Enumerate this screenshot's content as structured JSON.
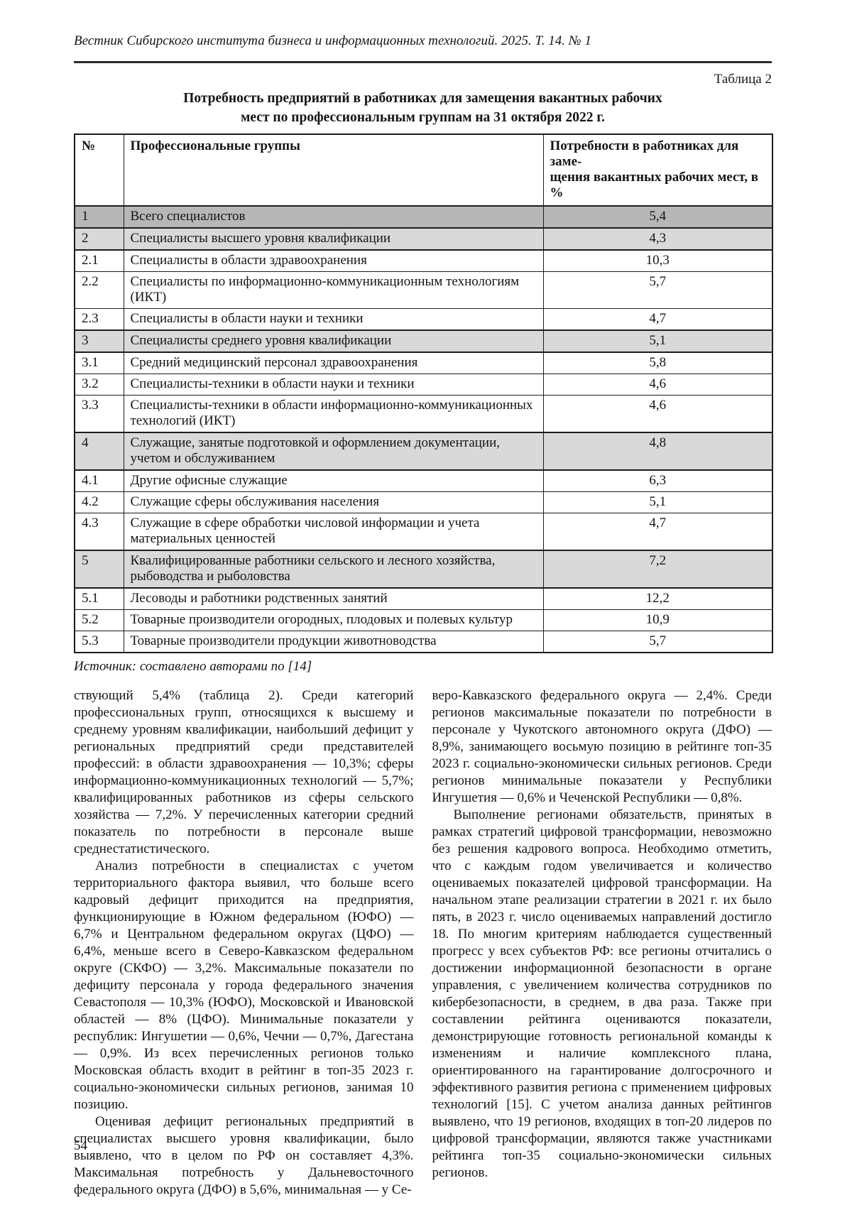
{
  "journal_header": "Вестник Сибирского института бизнеса и информационных технологий. 2025. Т. 14. № 1",
  "colors": {
    "total_row_bg": "#b7b7b7",
    "section_row_bg": "#d9d9d9",
    "border": "#1c1c1c"
  },
  "table": {
    "caption": "Таблица 2",
    "title": "Потребность предприятий в работниках для замещения вакантных рабочих\nмест по профессиональным группам на 31 октября 2022 г.",
    "columns": [
      "№",
      "Профессиональные группы",
      "Потребности в работниках для заме-\nщения вакантных рабочих мест, в %"
    ],
    "rows": [
      {
        "num": "1",
        "group": "Всего специалистов",
        "value": "5,4"
      },
      {
        "num": "2",
        "group": "Специалисты высшего уровня квалификации",
        "value": "4,3"
      },
      {
        "num": "2.1",
        "group": "Специалисты в области здравоохранения",
        "value": "10,3"
      },
      {
        "num": "2.2",
        "group": "Специалисты по информационно-коммуникационным технологиям (ИКТ)",
        "value": "5,7"
      },
      {
        "num": "2.3",
        "group": "Специалисты в области науки и техники",
        "value": "4,7"
      },
      {
        "num": "3",
        "group": "Специалисты среднего уровня квалификации",
        "value": "5,1"
      },
      {
        "num": "3.1",
        "group": "Средний медицинский персонал здравоохранения",
        "value": "5,8"
      },
      {
        "num": "3.2",
        "group": "Специалисты-техники в области науки и техники",
        "value": "4,6"
      },
      {
        "num": "3.3",
        "group": "Специалисты-техники в области информационно-коммуникационных технологий (ИКТ)",
        "value": "4,6"
      },
      {
        "num": "4",
        "group": "Служащие, занятые подготовкой и оформлением документации, учетом и обслуживанием",
        "value": "4,8"
      },
      {
        "num": "4.1",
        "group": "Другие офисные служащие",
        "value": "6,3"
      },
      {
        "num": "4.2",
        "group": "Служащие сферы обслуживания населения",
        "value": "5,1"
      },
      {
        "num": "4.3",
        "group": "Служащие в сфере обработки числовой информации и учета материальных ценностей",
        "value": "4,7"
      },
      {
        "num": "5",
        "group": "Квалифицированные работники сельского и лесного хозяйства, рыбоводства и рыболовства",
        "value": "7,2"
      },
      {
        "num": "5.1",
        "group": "Лесоводы и работники родственных занятий",
        "value": "12,2"
      },
      {
        "num": "5.2",
        "group": "Товарные производители огородных, плодовых и полевых культур",
        "value": "10,9"
      },
      {
        "num": "5.3",
        "group": "Товарные производители продукции животноводства",
        "value": "5,7"
      }
    ],
    "source_note": "Источник: составлено авторами по [14]"
  },
  "body": {
    "left_column": [
      {
        "indent": false,
        "text": "ствующий 5,4% (таблица 2). Среди категорий профессиональных групп, относящихся к высшему и среднему уровням квалификации, наибольший дефицит у региональных предприятий среди представителей профессий: в области здравоохранения — 10,3%; сферы информационно-коммуникационных технологий — 5,7%; квалифицированных работников из сферы сельского хозяйства — 7,2%. У перечисленных категории средний показатель по потребности в персонале выше среднестатистического."
      },
      {
        "indent": true,
        "text": "Анализ потребности в специалистах с учетом территориального фактора выявил, что больше всего кадровый дефицит приходится на предприятия, функционирующие в Южном федеральном (ЮФО) — 6,7% и Центральном федеральном округах (ЦФО) — 6,4%, меньше всего в Северо-Кавказском федеральном округе (СКФО) — 3,2%. Максимальные показатели по дефициту персонала у города федерального значения Севастополя — 10,3% (ЮФО), Московской и Ивановской областей — 8% (ЦФО). Минимальные показатели у республик: Ингушетии — 0,6%, Чечни — 0,7%, Дагестана — 0,9%. Из всех перечисленных регионов только Московская область входит в рейтинг в топ-35 2023 г. социально-экономически сильных регионов, занимая 10 позицию."
      },
      {
        "indent": true,
        "text": "Оценивая дефицит региональных предприятий в специалистах высшего уровня квалификации, было выявлено, что в целом по РФ он составляет 4,3%. Максимальная потребность у Дальневосточного федерального округа (ДФО) в 5,6%, минимальная — у Се-"
      }
    ],
    "right_column": [
      {
        "indent": false,
        "text": "веро-Кавказского федерального округа — 2,4%. Среди регионов максимальные показатели по потребности в персонале у Чукотского автономного округа (ДФО) — 8,9%, занимающего восьмую позицию в рейтинге топ-35 2023 г. социально-экономически сильных регионов. Среди регионов минимальные показатели у Республики Ингушетия — 0,6% и Чеченской Республики — 0,8%."
      },
      {
        "indent": true,
        "text": "Выполнение регионами обязательств, принятых в рамках стратегий цифровой трансформации, невозможно без решения кадрового вопроса. Необходимо отметить, что с каждым годом увеличивается и количество оцениваемых показателей цифровой трансформации. На начальном этапе реализации стратегии в 2021 г. их было пять, в 2023 г. число оцениваемых направлений достигло 18. По многим критериям наблюдается существенный прогресс у всех субъектов РФ: все регионы отчитались о достижении информационной безопасности в органе управления, с увеличением количества сотрудников по кибербезопасности, в среднем, в два раза. Также при составлении рейтинга оцениваются показатели, демонстрирующие готовность региональной команды к изменениям и наличие комплексного плана, ориентированного на гарантирование долгосрочного и эффективного развития региона с применением цифровых технологий [15]. С учетом анализа данных рейтингов выявлено, что 19 регионов, входящих в топ-20 лидеров по цифровой трансформации, являются также участниками рейтинга топ-35 социально-экономически сильных регионов."
      }
    ]
  },
  "page_number": "54"
}
